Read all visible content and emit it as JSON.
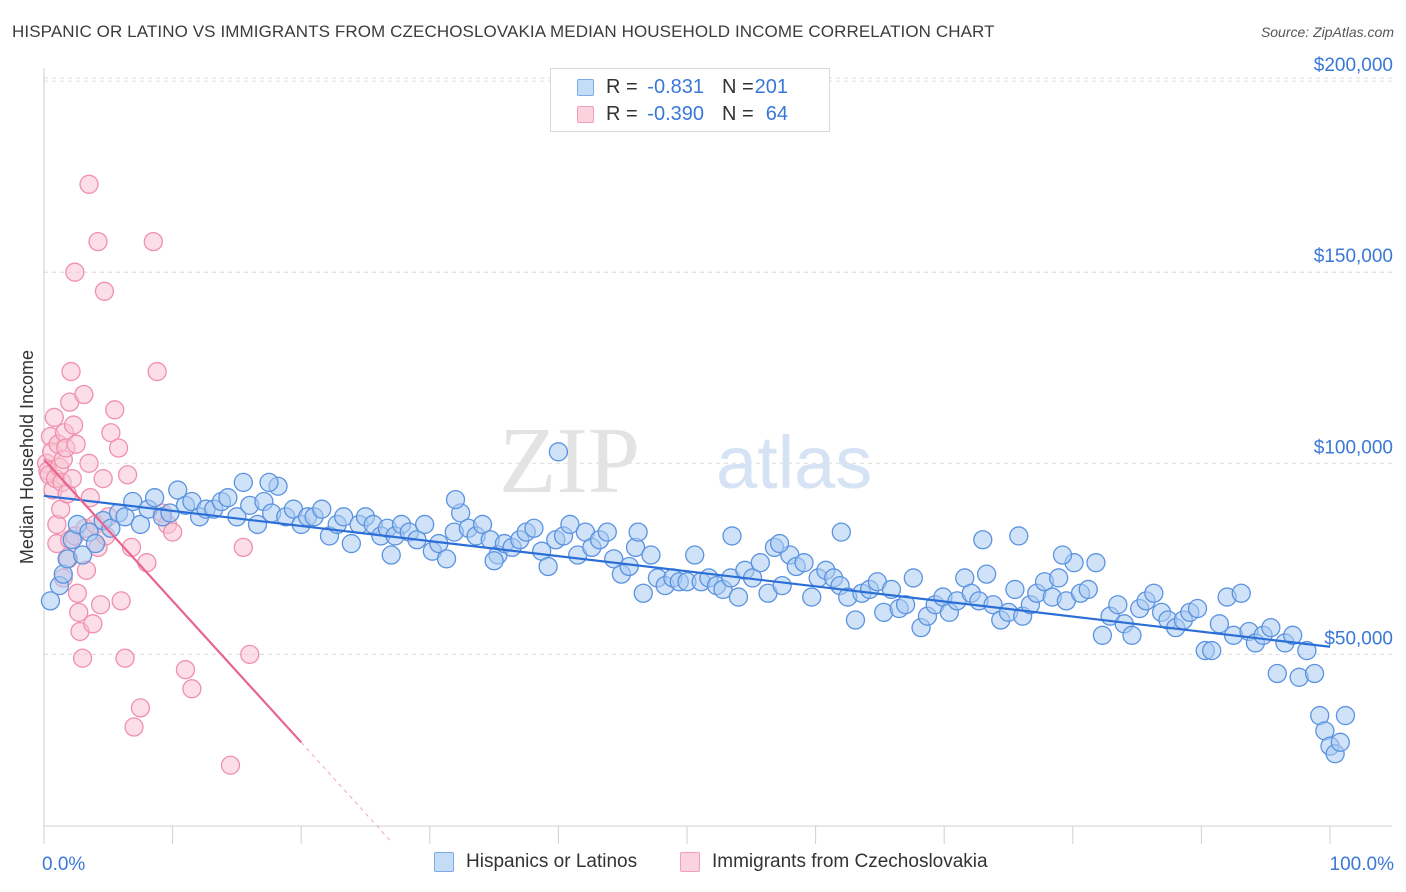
{
  "title": "HISPANIC OR LATINO VS IMMIGRANTS FROM CZECHOSLOVAKIA MEDIAN HOUSEHOLD INCOME CORRELATION CHART",
  "source": "Source: ZipAtlas.com",
  "watermark": {
    "zip": "ZIP",
    "atlas": "atlas"
  },
  "legend": {
    "rows": [
      {
        "r_label": "R =",
        "r_value": "-0.831",
        "n_label": "N =",
        "n_value": "201",
        "color": "#7aaae8",
        "fill": "#c5dcf7"
      },
      {
        "r_label": "R =",
        "r_value": "-0.390",
        "n_label": "N =",
        "n_value": "64",
        "color": "#f2a0ba",
        "fill": "#fbd3df"
      }
    ]
  },
  "bottom_legend": {
    "items": [
      {
        "label": "Hispanics or Latinos",
        "color": "#7aaae8",
        "fill": "#c5dcf7"
      },
      {
        "label": "Immigrants from Czechoslovakia",
        "color": "#f2a0ba",
        "fill": "#fbd3df"
      }
    ]
  },
  "chart_data": {
    "type": "scatter",
    "title": "HISPANIC OR LATINO VS IMMIGRANTS FROM CZECHOSLOVAKIA MEDIAN HOUSEHOLD INCOME CORRELATION CHART",
    "xlabel": "",
    "ylabel": "Median Household Income",
    "xlim": [
      0,
      100
    ],
    "ylim": [
      0,
      205000
    ],
    "x_tick_labels": [
      {
        "value": 0,
        "label": "0.0%"
      },
      {
        "value": 100,
        "label": "100.0%"
      }
    ],
    "y_ticks": [
      {
        "value": 50000,
        "label": "$50,000"
      },
      {
        "value": 100000,
        "label": "$100,000"
      },
      {
        "value": 150000,
        "label": "$150,000"
      },
      {
        "value": 200000,
        "label": "$200,000"
      }
    ],
    "x_minor_ticks": [
      0,
      10,
      20,
      30,
      40,
      50,
      60,
      70,
      80,
      90,
      100
    ],
    "grid": true,
    "series": [
      {
        "name": "Hispanics or Latinos",
        "color": "#5b93e0",
        "fill": "#aacbf2",
        "line_color": "#2b6fd6",
        "trend": {
          "x0": 0,
          "y0": 91500,
          "x1": 100,
          "y1": 52000
        },
        "points": [
          [
            0.5,
            64000
          ],
          [
            1.2,
            68000
          ],
          [
            1.5,
            71000
          ],
          [
            1.8,
            75000
          ],
          [
            2.2,
            80000
          ],
          [
            2.6,
            84000
          ],
          [
            3.0,
            76000
          ],
          [
            3.5,
            82000
          ],
          [
            4.0,
            79000
          ],
          [
            4.6,
            85000
          ],
          [
            5.2,
            83000
          ],
          [
            5.8,
            87000
          ],
          [
            6.3,
            86000
          ],
          [
            6.9,
            90000
          ],
          [
            7.5,
            84000
          ],
          [
            8.1,
            88000
          ],
          [
            8.6,
            91000
          ],
          [
            9.2,
            86000
          ],
          [
            9.8,
            87000
          ],
          [
            10.4,
            93000
          ],
          [
            11.0,
            89000
          ],
          [
            11.5,
            90000
          ],
          [
            12.1,
            86000
          ],
          [
            12.6,
            88000
          ],
          [
            13.2,
            88000
          ],
          [
            13.8,
            90000
          ],
          [
            14.3,
            91000
          ],
          [
            15.0,
            86000
          ],
          [
            15.5,
            95000
          ],
          [
            16.0,
            89000
          ],
          [
            16.6,
            84000
          ],
          [
            17.1,
            90000
          ],
          [
            17.7,
            87000
          ],
          [
            18.2,
            94000
          ],
          [
            18.8,
            86000
          ],
          [
            19.4,
            88000
          ],
          [
            20.0,
            84000
          ],
          [
            20.5,
            86000
          ],
          [
            21.0,
            86000
          ],
          [
            21.6,
            88000
          ],
          [
            22.2,
            81000
          ],
          [
            22.8,
            84000
          ],
          [
            23.3,
            86000
          ],
          [
            23.9,
            79000
          ],
          [
            24.5,
            84000
          ],
          [
            25.0,
            86000
          ],
          [
            25.6,
            84000
          ],
          [
            26.2,
            81000
          ],
          [
            26.7,
            83000
          ],
          [
            27.3,
            81000
          ],
          [
            27.8,
            84000
          ],
          [
            28.4,
            82000
          ],
          [
            29.0,
            80000
          ],
          [
            29.6,
            84000
          ],
          [
            30.2,
            77000
          ],
          [
            30.7,
            79000
          ],
          [
            31.3,
            75000
          ],
          [
            31.9,
            82000
          ],
          [
            32.4,
            87000
          ],
          [
            33.0,
            83000
          ],
          [
            33.6,
            81000
          ],
          [
            34.1,
            84000
          ],
          [
            34.7,
            80000
          ],
          [
            35.3,
            76000
          ],
          [
            35.8,
            79000
          ],
          [
            36.4,
            78000
          ],
          [
            37.0,
            80000
          ],
          [
            37.5,
            82000
          ],
          [
            38.1,
            83000
          ],
          [
            38.7,
            77000
          ],
          [
            39.2,
            73000
          ],
          [
            39.8,
            80000
          ],
          [
            40.4,
            81000
          ],
          [
            40.9,
            84000
          ],
          [
            41.5,
            76000
          ],
          [
            42.1,
            82000
          ],
          [
            42.6,
            78000
          ],
          [
            43.2,
            80000
          ],
          [
            43.8,
            82000
          ],
          [
            44.3,
            75000
          ],
          [
            44.9,
            71000
          ],
          [
            45.5,
            73000
          ],
          [
            46.0,
            78000
          ],
          [
            46.6,
            66000
          ],
          [
            47.2,
            76000
          ],
          [
            47.7,
            70000
          ],
          [
            48.3,
            68000
          ],
          [
            48.9,
            70000
          ],
          [
            49.4,
            69000
          ],
          [
            50.0,
            69000
          ],
          [
            50.6,
            76000
          ],
          [
            51.1,
            69000
          ],
          [
            51.7,
            70000
          ],
          [
            52.3,
            68000
          ],
          [
            52.8,
            67000
          ],
          [
            53.4,
            70000
          ],
          [
            54.0,
            65000
          ],
          [
            54.5,
            72000
          ],
          [
            55.1,
            70000
          ],
          [
            55.7,
            74000
          ],
          [
            56.3,
            66000
          ],
          [
            56.8,
            78000
          ],
          [
            57.4,
            68000
          ],
          [
            58.0,
            76000
          ],
          [
            58.5,
            73000
          ],
          [
            59.1,
            74000
          ],
          [
            59.7,
            65000
          ],
          [
            60.2,
            70000
          ],
          [
            60.8,
            72000
          ],
          [
            61.4,
            70000
          ],
          [
            61.9,
            68000
          ],
          [
            62.5,
            65000
          ],
          [
            63.1,
            59000
          ],
          [
            63.6,
            66000
          ],
          [
            64.2,
            67000
          ],
          [
            64.8,
            69000
          ],
          [
            65.3,
            61000
          ],
          [
            65.9,
            67000
          ],
          [
            66.5,
            62000
          ],
          [
            67.0,
            63000
          ],
          [
            67.6,
            70000
          ],
          [
            68.2,
            57000
          ],
          [
            68.7,
            60000
          ],
          [
            69.3,
            63000
          ],
          [
            69.9,
            65000
          ],
          [
            70.4,
            61000
          ],
          [
            71.0,
            64000
          ],
          [
            71.6,
            70000
          ],
          [
            72.1,
            66000
          ],
          [
            72.7,
            64000
          ],
          [
            73.3,
            71000
          ],
          [
            73.8,
            63000
          ],
          [
            74.4,
            59000
          ],
          [
            75.0,
            61000
          ],
          [
            75.5,
            67000
          ],
          [
            76.1,
            60000
          ],
          [
            76.7,
            63000
          ],
          [
            77.2,
            66000
          ],
          [
            77.8,
            69000
          ],
          [
            78.4,
            65000
          ],
          [
            78.9,
            70000
          ],
          [
            79.5,
            64000
          ],
          [
            80.1,
            74000
          ],
          [
            80.6,
            66000
          ],
          [
            81.2,
            67000
          ],
          [
            81.8,
            74000
          ],
          [
            82.3,
            55000
          ],
          [
            82.9,
            60000
          ],
          [
            83.5,
            63000
          ],
          [
            84.0,
            58000
          ],
          [
            84.6,
            55000
          ],
          [
            85.2,
            62000
          ],
          [
            85.7,
            64000
          ],
          [
            86.3,
            66000
          ],
          [
            86.9,
            61000
          ],
          [
            87.4,
            59000
          ],
          [
            88.0,
            57000
          ],
          [
            88.6,
            59000
          ],
          [
            89.1,
            61000
          ],
          [
            89.7,
            62000
          ],
          [
            90.3,
            51000
          ],
          [
            90.8,
            51000
          ],
          [
            91.4,
            58000
          ],
          [
            92.0,
            65000
          ],
          [
            92.5,
            55000
          ],
          [
            93.1,
            66000
          ],
          [
            93.7,
            56000
          ],
          [
            94.2,
            53000
          ],
          [
            94.8,
            55000
          ],
          [
            95.4,
            57000
          ],
          [
            95.9,
            45000
          ],
          [
            96.5,
            53000
          ],
          [
            97.1,
            55000
          ],
          [
            97.6,
            44000
          ],
          [
            98.2,
            51000
          ],
          [
            98.8,
            45000
          ],
          [
            99.2,
            34000
          ],
          [
            99.6,
            30000
          ],
          [
            100.0,
            26000
          ],
          [
            100.4,
            24000
          ],
          [
            100.8,
            27000
          ],
          [
            101.2,
            34000
          ],
          [
            17.5,
            95000
          ],
          [
            32.0,
            90500
          ],
          [
            40.0,
            103000
          ],
          [
            57.2,
            79000
          ],
          [
            62.0,
            82000
          ],
          [
            73.0,
            80000
          ],
          [
            75.8,
            81000
          ],
          [
            79.2,
            76000
          ],
          [
            46.2,
            82000
          ],
          [
            53.5,
            81000
          ],
          [
            27.0,
            76000
          ],
          [
            35.0,
            74500
          ]
        ]
      },
      {
        "name": "Immigrants from Czechoslovakia",
        "color": "#f08fae",
        "fill": "#f8c3d3",
        "line_color": "#e8648f",
        "trend": {
          "x0": 0,
          "y0": 101000,
          "x1": 20,
          "y1": 27000
        },
        "trend_dashed_to": {
          "x": 27,
          "y": 1000
        },
        "points": [
          [
            0.2,
            100000
          ],
          [
            0.3,
            98000
          ],
          [
            0.4,
            97000
          ],
          [
            0.5,
            107000
          ],
          [
            0.6,
            103000
          ],
          [
            0.7,
            93000
          ],
          [
            0.8,
            112000
          ],
          [
            0.9,
            96000
          ],
          [
            1.0,
            84000
          ],
          [
            1.0,
            79000
          ],
          [
            1.1,
            105000
          ],
          [
            1.2,
            99000
          ],
          [
            1.3,
            88000
          ],
          [
            1.4,
            95000
          ],
          [
            1.5,
            70000
          ],
          [
            1.5,
            101000
          ],
          [
            1.6,
            108000
          ],
          [
            1.7,
            104000
          ],
          [
            1.8,
            92000
          ],
          [
            1.9,
            75000
          ],
          [
            2.0,
            116000
          ],
          [
            2.0,
            80000
          ],
          [
            2.1,
            124000
          ],
          [
            2.2,
            96000
          ],
          [
            2.3,
            110000
          ],
          [
            2.4,
            81000
          ],
          [
            2.5,
            105000
          ],
          [
            2.6,
            66000
          ],
          [
            2.7,
            61000
          ],
          [
            2.8,
            56000
          ],
          [
            3.0,
            49000
          ],
          [
            3.1,
            118000
          ],
          [
            3.2,
            83000
          ],
          [
            3.3,
            72000
          ],
          [
            3.5,
            100000
          ],
          [
            3.6,
            91000
          ],
          [
            3.8,
            58000
          ],
          [
            4.0,
            84000
          ],
          [
            4.2,
            78000
          ],
          [
            4.4,
            63000
          ],
          [
            4.6,
            96000
          ],
          [
            4.8,
            81000
          ],
          [
            5.0,
            86000
          ],
          [
            5.2,
            108000
          ],
          [
            5.5,
            114000
          ],
          [
            5.8,
            104000
          ],
          [
            6.0,
            64000
          ],
          [
            6.3,
            49000
          ],
          [
            6.5,
            97000
          ],
          [
            6.8,
            78000
          ],
          [
            7.0,
            31000
          ],
          [
            7.5,
            36000
          ],
          [
            8.0,
            74000
          ],
          [
            8.5,
            158000
          ],
          [
            8.8,
            124000
          ],
          [
            9.2,
            87000
          ],
          [
            9.6,
            84000
          ],
          [
            10.0,
            82000
          ],
          [
            11.0,
            46000
          ],
          [
            11.5,
            41000
          ],
          [
            14.5,
            21000
          ],
          [
            15.5,
            78000
          ],
          [
            16.0,
            50000
          ],
          [
            2.4,
            150000
          ],
          [
            3.5,
            173000
          ],
          [
            4.2,
            158000
          ],
          [
            4.7,
            145000
          ]
        ]
      }
    ]
  }
}
